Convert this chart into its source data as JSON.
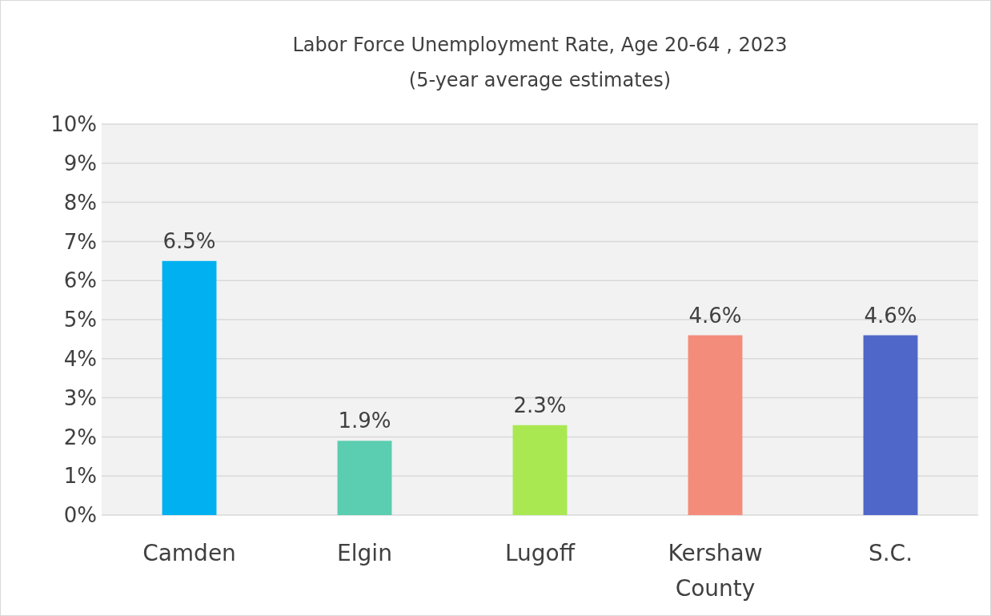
{
  "chart_data": {
    "type": "bar",
    "title": "Labor Force Unemployment Rate, Age 20-64 , 2023",
    "subtitle": "(5-year average estimates)",
    "categories": [
      "Camden",
      "Elgin",
      "Lugoff",
      "Kershaw County",
      "S.C."
    ],
    "values": [
      6.5,
      1.9,
      2.3,
      4.6,
      4.6
    ],
    "colors": [
      "#00b0f0",
      "#5bcdb0",
      "#a9e851",
      "#f48c7c",
      "#4f67c8"
    ],
    "value_labels": [
      "6.5%",
      "1.9%",
      "2.3%",
      "4.6%",
      "4.6%"
    ],
    "ylim": [
      0,
      10
    ],
    "yticks": [
      {
        "value": 0,
        "label": "0%"
      },
      {
        "value": 1,
        "label": "1%"
      },
      {
        "value": 2,
        "label": "2%"
      },
      {
        "value": 3,
        "label": "3%"
      },
      {
        "value": 4,
        "label": "4%"
      },
      {
        "value": 5,
        "label": "5%"
      },
      {
        "value": 6,
        "label": "6%"
      },
      {
        "value": 7,
        "label": "7%"
      },
      {
        "value": 8,
        "label": "8%"
      },
      {
        "value": 9,
        "label": "9%"
      },
      {
        "value": 10,
        "label": "10%"
      }
    ],
    "grid": "y"
  }
}
